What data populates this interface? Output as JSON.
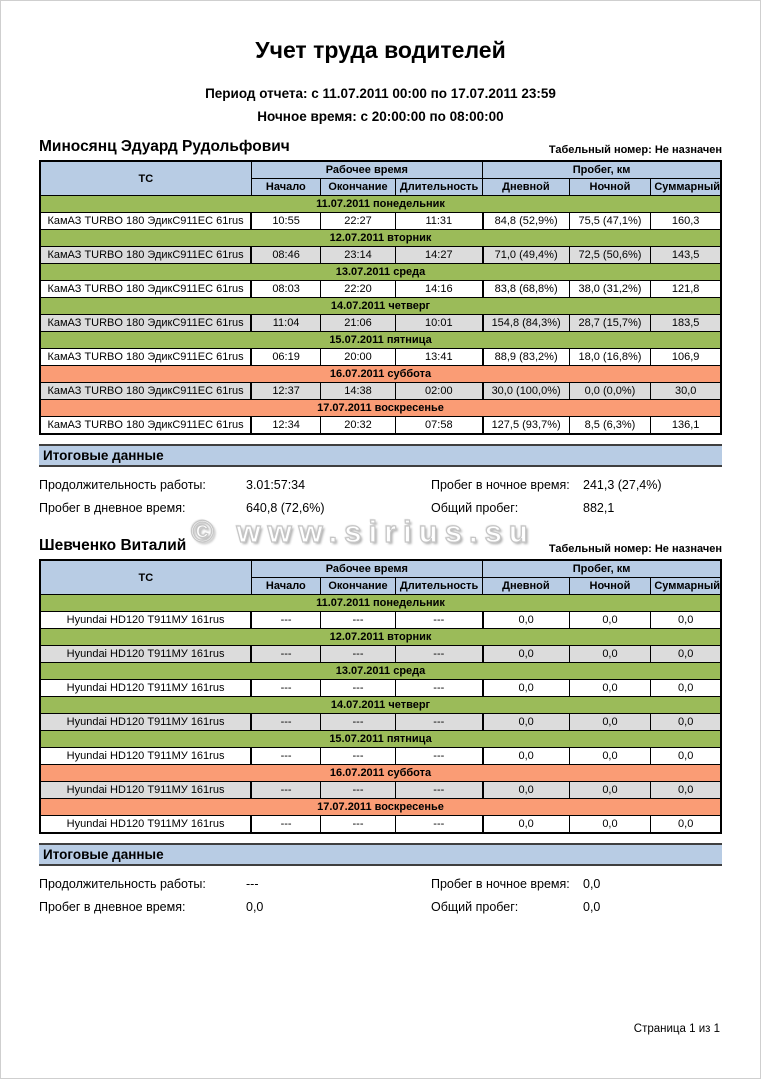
{
  "page": {
    "title": "Учет труда водителей",
    "period": "Период отчета: с 11.07.2011 00:00 по 17.07.2011 23:59",
    "night_time": "Ночное время: с 20:00:00 по 08:00:00",
    "watermark": "© www.sirius.su",
    "footer": "Страница 1 из 1"
  },
  "colors": {
    "header_blue": "#b8cce4",
    "weekday_green": "#9bbb59",
    "weekend_orange": "#fa9c75",
    "alt_gray": "#dcdcdc"
  },
  "table_headers": {
    "tc": "ТС",
    "work_time": "Рабочее время",
    "mileage": "Пробег, км",
    "start": "Начало",
    "end": "Окончание",
    "duration": "Длительность",
    "day": "Дневной",
    "night": "Ночной",
    "total": "Суммарный"
  },
  "summary_labels": {
    "title": "Итоговые данные",
    "work_duration": "Продолжительность работы:",
    "night_mileage": "Пробег в ночное время:",
    "day_mileage": "Пробег в дневное время:",
    "total_mileage": "Общий пробег:"
  },
  "drivers": [
    {
      "name": "Миносянц Эдуард Рудольфович",
      "personnel": "Табельный номер: Не назначен",
      "days": [
        {
          "date": "11.07.2011 понедельник",
          "type": "weekday",
          "vehicle": "КамАЗ TURBO 180 ЭдикС911ЕС 61rus",
          "start": "10:55",
          "end": "22:27",
          "duration": "11:31",
          "day": "84,8 (52,9%)",
          "night": "75,5 (47,1%)",
          "total": "160,3"
        },
        {
          "date": "12.07.2011 вторник",
          "type": "weekday",
          "vehicle": "КамАЗ TURBO 180 ЭдикС911ЕС 61rus",
          "start": "08:46",
          "end": "23:14",
          "duration": "14:27",
          "day": "71,0 (49,4%)",
          "night": "72,5 (50,6%)",
          "total": "143,5"
        },
        {
          "date": "13.07.2011 среда",
          "type": "weekday",
          "vehicle": "КамАЗ TURBO 180 ЭдикС911ЕС 61rus",
          "start": "08:03",
          "end": "22:20",
          "duration": "14:16",
          "day": "83,8 (68,8%)",
          "night": "38,0 (31,2%)",
          "total": "121,8"
        },
        {
          "date": "14.07.2011 четверг",
          "type": "weekday",
          "vehicle": "КамАЗ TURBO 180 ЭдикС911ЕС 61rus",
          "start": "11:04",
          "end": "21:06",
          "duration": "10:01",
          "day": "154,8 (84,3%)",
          "night": "28,7 (15,7%)",
          "total": "183,5"
        },
        {
          "date": "15.07.2011 пятница",
          "type": "weekday",
          "vehicle": "КамАЗ TURBO 180 ЭдикС911ЕС 61rus",
          "start": "06:19",
          "end": "20:00",
          "duration": "13:41",
          "day": "88,9 (83,2%)",
          "night": "18,0 (16,8%)",
          "total": "106,9"
        },
        {
          "date": "16.07.2011 суббота",
          "type": "weekend",
          "vehicle": "КамАЗ TURBO 180 ЭдикС911ЕС 61rus",
          "start": "12:37",
          "end": "14:38",
          "duration": "02:00",
          "day": "30,0 (100,0%)",
          "night": "0,0 (0,0%)",
          "total": "30,0"
        },
        {
          "date": "17.07.2011 воскресенье",
          "type": "weekend",
          "vehicle": "КамАЗ TURBO 180 ЭдикС911ЕС 61rus",
          "start": "12:34",
          "end": "20:32",
          "duration": "07:58",
          "day": "127,5 (93,7%)",
          "night": "8,5 (6,3%)",
          "total": "136,1"
        }
      ],
      "summary": {
        "work_duration": "3.01:57:34",
        "night_mileage": "241,3 (27,4%)",
        "day_mileage": "640,8 (72,6%)",
        "total_mileage": "882,1"
      }
    },
    {
      "name": "Шевченко Виталий",
      "personnel": "Табельный номер: Не назначен",
      "days": [
        {
          "date": "11.07.2011 понедельник",
          "type": "weekday",
          "vehicle": "Hyundai HD120 Т911МУ 161rus",
          "start": "---",
          "end": "---",
          "duration": "---",
          "day": "0,0",
          "night": "0,0",
          "total": "0,0"
        },
        {
          "date": "12.07.2011 вторник",
          "type": "weekday",
          "vehicle": "Hyundai HD120 Т911МУ 161rus",
          "start": "---",
          "end": "---",
          "duration": "---",
          "day": "0,0",
          "night": "0,0",
          "total": "0,0"
        },
        {
          "date": "13.07.2011 среда",
          "type": "weekday",
          "vehicle": "Hyundai HD120 Т911МУ 161rus",
          "start": "---",
          "end": "---",
          "duration": "---",
          "day": "0,0",
          "night": "0,0",
          "total": "0,0"
        },
        {
          "date": "14.07.2011 четверг",
          "type": "weekday",
          "vehicle": "Hyundai HD120 Т911МУ 161rus",
          "start": "---",
          "end": "---",
          "duration": "---",
          "day": "0,0",
          "night": "0,0",
          "total": "0,0"
        },
        {
          "date": "15.07.2011 пятница",
          "type": "weekday",
          "vehicle": "Hyundai HD120 Т911МУ 161rus",
          "start": "---",
          "end": "---",
          "duration": "---",
          "day": "0,0",
          "night": "0,0",
          "total": "0,0"
        },
        {
          "date": "16.07.2011 суббота",
          "type": "weekend",
          "vehicle": "Hyundai HD120 Т911МУ 161rus",
          "start": "---",
          "end": "---",
          "duration": "---",
          "day": "0,0",
          "night": "0,0",
          "total": "0,0"
        },
        {
          "date": "17.07.2011 воскресенье",
          "type": "weekend",
          "vehicle": "Hyundai HD120 Т911МУ 161rus",
          "start": "---",
          "end": "---",
          "duration": "---",
          "day": "0,0",
          "night": "0,0",
          "total": "0,0"
        }
      ],
      "summary": {
        "work_duration": "---",
        "night_mileage": "0,0",
        "day_mileage": "0,0",
        "total_mileage": "0,0"
      }
    }
  ]
}
